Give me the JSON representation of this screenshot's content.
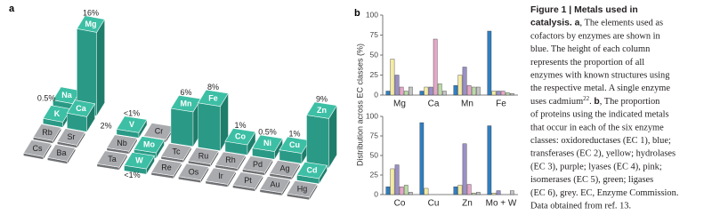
{
  "panel_labels": {
    "a": "a",
    "b": "b"
  },
  "periodic_table": {
    "groups": [
      {
        "rows": [
          [
            {
              "symbol": "Na",
              "used": true,
              "value": 0.5,
              "label": "0.5%"
            },
            {
              "symbol": "Mg",
              "used": true,
              "value": 16,
              "label": "16%"
            }
          ],
          [
            {
              "symbol": "K",
              "used": true
            },
            {
              "symbol": "Ca",
              "used": true,
              "value": 2,
              "label": "2%"
            }
          ],
          [
            {
              "symbol": "Rb",
              "used": false
            },
            {
              "symbol": "Sr",
              "used": false
            }
          ],
          [
            {
              "symbol": "Cs",
              "used": false
            },
            {
              "symbol": "Ba",
              "used": false
            }
          ]
        ]
      },
      {
        "rows": [
          [
            {
              "symbol": "V",
              "used": true,
              "label": "<1%"
            },
            {
              "symbol": "Cr",
              "used": false
            },
            {
              "symbol": "Mn",
              "used": true,
              "value": 6,
              "label": "6%"
            },
            {
              "symbol": "Fe",
              "used": true,
              "value": 8,
              "label": "8%"
            },
            {
              "symbol": "Co",
              "used": true,
              "value": 1,
              "label": "1%"
            },
            {
              "symbol": "Ni",
              "used": true,
              "value": 0.5,
              "label": "0.5%"
            },
            {
              "symbol": "Cu",
              "used": true,
              "value": 1,
              "label": "1%"
            },
            {
              "symbol": "Zn",
              "used": true,
              "value": 9,
              "label": "9%"
            }
          ],
          [
            {
              "symbol": "Nb",
              "used": false
            },
            {
              "symbol": "Mo",
              "used": true
            },
            {
              "symbol": "Tc",
              "used": false
            },
            {
              "symbol": "Ru",
              "used": false
            },
            {
              "symbol": "Rh",
              "used": false
            },
            {
              "symbol": "Pd",
              "used": false
            },
            {
              "symbol": "Ag",
              "used": false
            },
            {
              "symbol": "Cd",
              "used": true
            }
          ],
          [
            {
              "symbol": "Ta",
              "used": false
            },
            {
              "symbol": "W",
              "used": true,
              "label": "<1%"
            },
            {
              "symbol": "Re",
              "used": false
            },
            {
              "symbol": "Os",
              "used": false
            },
            {
              "symbol": "Ir",
              "used": false
            },
            {
              "symbol": "Pt",
              "used": false
            },
            {
              "symbol": "Au",
              "used": false
            },
            {
              "symbol": "Hg",
              "used": false
            }
          ]
        ]
      }
    ]
  },
  "panel_b_ylabel": "Distribution across EC classes (%)",
  "chart_data": [
    {
      "type": "bar",
      "categories": [
        "Mg",
        "Ca",
        "Mn",
        "Fe"
      ],
      "ylim": [
        0,
        100
      ],
      "yticks": [
        0,
        25,
        50,
        75,
        100
      ],
      "series": [
        {
          "color": "#2f7fc1",
          "values": [
            5,
            5,
            12,
            80
          ]
        },
        {
          "color": "#f4eba3",
          "values": [
            45,
            10,
            25,
            5
          ]
        },
        {
          "color": "#9a8fc6",
          "values": [
            25,
            10,
            35,
            5
          ]
        },
        {
          "color": "#e7a6c8",
          "values": [
            10,
            70,
            12,
            5
          ]
        },
        {
          "color": "#bcd9a6",
          "values": [
            5,
            14,
            10,
            3
          ]
        },
        {
          "color": "#c4c4c4",
          "values": [
            10,
            5,
            10,
            2
          ]
        }
      ]
    },
    {
      "type": "bar",
      "categories": [
        "Co",
        "Cu",
        "Zn",
        "Mo + W"
      ],
      "ylim": [
        0,
        100
      ],
      "yticks": [
        0,
        25,
        50,
        75,
        100
      ],
      "series": [
        {
          "color": "#2f7fc1",
          "values": [
            10,
            92,
            10,
            88
          ]
        },
        {
          "color": "#f4eba3",
          "values": [
            33,
            8,
            12,
            2
          ]
        },
        {
          "color": "#9a8fc6",
          "values": [
            38,
            0,
            65,
            5
          ]
        },
        {
          "color": "#e7a6c8",
          "values": [
            10,
            0,
            13,
            0
          ]
        },
        {
          "color": "#bcd9a6",
          "values": [
            12,
            0,
            2,
            0
          ]
        },
        {
          "color": "#c4c4c4",
          "values": [
            3,
            0,
            3,
            5
          ]
        }
      ]
    }
  ],
  "caption": {
    "lines": [
      [
        {
          "text": "Figure 1 | Metals used in",
          "bold": true
        }
      ],
      [
        {
          "text": "catalysis.",
          "bold": true
        },
        {
          "text": " a",
          "bold": true
        },
        {
          "text": ", The elements used as"
        }
      ],
      [
        {
          "text": "cofactors by enzymes are shown in"
        }
      ],
      [
        {
          "text": "blue. The height of each column"
        }
      ],
      [
        {
          "text": "represents the proportion of all"
        }
      ],
      [
        {
          "text": "enzymes with known structures using"
        }
      ],
      [
        {
          "text": "the respective metal. A single enzyme"
        }
      ],
      [
        {
          "text": "uses cadmium"
        },
        {
          "text": "22",
          "sup": true
        },
        {
          "text": ". "
        },
        {
          "text": "b",
          "bold": true
        },
        {
          "text": ", The proportion"
        }
      ],
      [
        {
          "text": "of proteins using the indicated metals"
        }
      ],
      [
        {
          "text": "that occur in each of the six enzyme"
        }
      ],
      [
        {
          "text": "classes: oxidoreductases (EC 1), blue;"
        }
      ],
      [
        {
          "text": "transferases (EC 2), yellow; hydrolases"
        }
      ],
      [
        {
          "text": "(EC 3), purple; lyases (EC 4), pink;"
        }
      ],
      [
        {
          "text": "isomerases (EC 5), green; ligases"
        }
      ],
      [
        {
          "text": "(EC 6), grey. EC, Enzyme Commission."
        }
      ],
      [
        {
          "text": "Data obtained from ref. 13."
        }
      ]
    ]
  }
}
